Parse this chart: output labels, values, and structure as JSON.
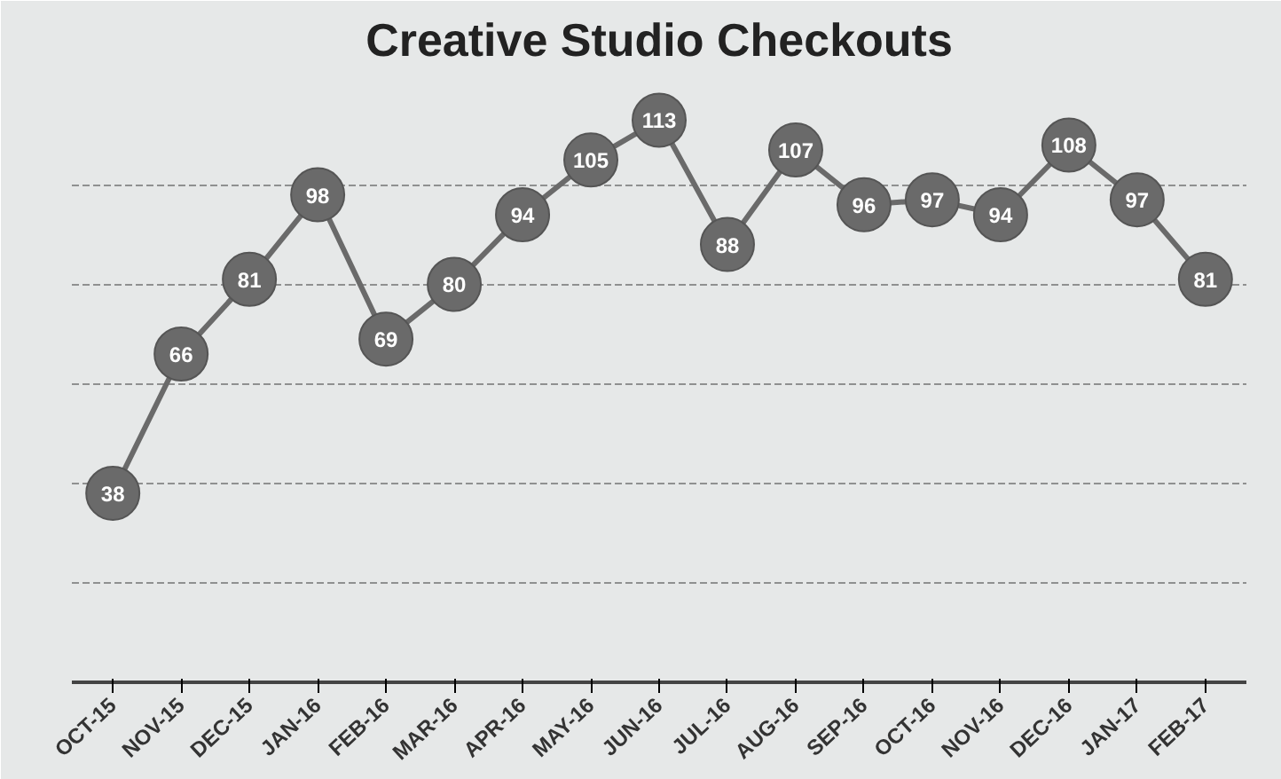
{
  "chart_data": {
    "type": "line",
    "title": "Creative Studio Checkouts",
    "categories": [
      "OCT-15",
      "NOV-15",
      "DEC-15",
      "JAN-16",
      "FEB-16",
      "MAR-16",
      "APR-16",
      "MAY-16",
      "JUN-16",
      "JUL-16",
      "AUG-16",
      "SEP-16",
      "OCT-16",
      "NOV-16",
      "DEC-16",
      "JAN-17",
      "FEB-17"
    ],
    "series": [
      {
        "color": "#6a6a6a",
        "values": [
          38,
          66,
          81,
          98,
          69,
          80,
          94,
          105,
          113,
          88,
          107,
          96,
          97,
          94,
          108,
          97,
          81
        ]
      }
    ],
    "ylim": [
      0,
      122
    ],
    "yticks": [
      {
        "value": 20,
        "label": null
      },
      {
        "value": 40,
        "label": null
      },
      {
        "value": 60,
        "label": null
      },
      {
        "value": 80,
        "label": null
      },
      {
        "value": 100,
        "label": null
      }
    ],
    "tick_labels": "x",
    "grid": "y",
    "marker": "circle",
    "line_style": "solid",
    "data_labels": true
  }
}
